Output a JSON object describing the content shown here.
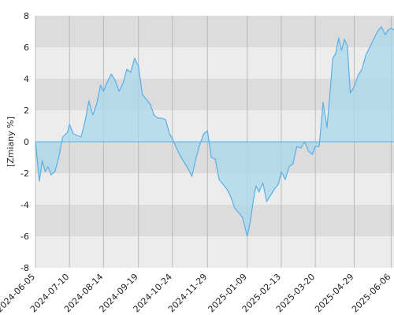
{
  "chart_data": {
    "type": "area",
    "title": "",
    "xlabel": "",
    "ylabel": "[Zmiany %]",
    "ylim": [
      -8,
      8
    ],
    "y_ticks": [
      "8",
      "6",
      "4",
      "2",
      "0",
      "-2",
      "-4",
      "-6",
      "-8"
    ],
    "x_ticks": [
      "2024-06-05",
      "2024-07-10",
      "2024-08-14",
      "2024-09-19",
      "2024-10-24",
      "2024-11-29",
      "2025-01-09",
      "2025-02-13",
      "2025-03-20",
      "2025-04-29",
      "2025-06-06"
    ],
    "grid": true,
    "colors": {
      "line": "#5aaee8",
      "fill": "#a8d8ea",
      "band_dark": "#dcdcdc",
      "band_light": "#ececec",
      "vgrid": "#b0b0b0"
    },
    "series": [
      {
        "x": [
          "2024-06-05",
          "2024-06-09",
          "2024-06-12",
          "2024-06-15",
          "2024-06-18",
          "2024-06-21",
          "2024-06-25",
          "2024-06-29",
          "2024-07-03",
          "2024-07-08",
          "2024-07-10",
          "2024-07-14",
          "2024-07-18",
          "2024-07-22",
          "2024-07-26",
          "2024-07-30",
          "2024-08-03",
          "2024-08-07",
          "2024-08-11",
          "2024-08-14",
          "2024-08-18",
          "2024-08-22",
          "2024-08-26",
          "2024-08-30",
          "2024-09-03",
          "2024-09-07",
          "2024-09-11",
          "2024-09-15",
          "2024-09-19",
          "2024-09-23",
          "2024-09-27",
          "2024-10-01",
          "2024-10-05",
          "2024-10-09",
          "2024-10-13",
          "2024-10-17",
          "2024-10-21",
          "2024-10-24",
          "2024-10-28",
          "2024-11-01",
          "2024-11-05",
          "2024-11-09",
          "2024-11-13",
          "2024-11-17",
          "2024-11-21",
          "2024-11-25",
          "2024-11-29",
          "2024-12-03",
          "2024-12-07",
          "2024-12-11",
          "2024-12-15",
          "2024-12-19",
          "2024-12-23",
          "2024-12-27",
          "2024-12-31",
          "2025-01-04",
          "2025-01-09",
          "2025-01-12",
          "2025-01-15",
          "2025-01-18",
          "2025-01-21",
          "2025-01-25",
          "2025-01-29",
          "2025-02-02",
          "2025-02-06",
          "2025-02-10",
          "2025-02-13",
          "2025-02-17",
          "2025-02-21",
          "2025-02-25",
          "2025-03-01",
          "2025-03-05",
          "2025-03-09",
          "2025-03-13",
          "2025-03-17",
          "2025-03-20",
          "2025-03-24",
          "2025-03-28",
          "2025-04-01",
          "2025-04-04",
          "2025-04-07",
          "2025-04-10",
          "2025-04-13",
          "2025-04-16",
          "2025-04-19",
          "2025-04-22",
          "2025-04-25",
          "2025-04-29",
          "2025-05-03",
          "2025-05-07",
          "2025-05-11",
          "2025-05-15",
          "2025-05-19",
          "2025-05-23",
          "2025-05-27",
          "2025-05-31",
          "2025-06-03",
          "2025-06-06",
          "2025-06-09"
        ],
        "values": [
          0,
          -2.5,
          -1.2,
          -1.9,
          -1.6,
          -2.1,
          -1.9,
          -1.0,
          0.3,
          0.6,
          1.1,
          0.5,
          0.4,
          0.3,
          1.3,
          2.6,
          1.7,
          2.4,
          3.6,
          3.2,
          3.8,
          4.3,
          3.9,
          3.2,
          3.7,
          4.6,
          4.4,
          5.3,
          4.8,
          3.0,
          2.7,
          2.4,
          1.7,
          1.5,
          1.5,
          1.4,
          0.5,
          0.2,
          -0.4,
          -0.9,
          -1.3,
          -1.7,
          -2.2,
          -1.1,
          -0.2,
          0.5,
          0.7,
          -1.0,
          -1.1,
          -2.4,
          -2.7,
          -3.0,
          -3.5,
          -4.2,
          -4.5,
          -4.8,
          -6.0,
          -5.1,
          -3.8,
          -2.8,
          -3.2,
          -2.6,
          -3.8,
          -3.4,
          -3.0,
          -2.7,
          -1.9,
          -2.4,
          -1.6,
          -1.4,
          -0.3,
          -0.4,
          0.0,
          -0.6,
          -0.8,
          -0.3,
          -0.3,
          2.5,
          0.9,
          3.0,
          5.3,
          5.6,
          6.6,
          5.8,
          6.5,
          6.1,
          3.1,
          3.5,
          4.2,
          4.6,
          5.5,
          6.0,
          6.5,
          7.0,
          7.3,
          6.8,
          7.1,
          7.2,
          7.1
        ]
      }
    ]
  }
}
